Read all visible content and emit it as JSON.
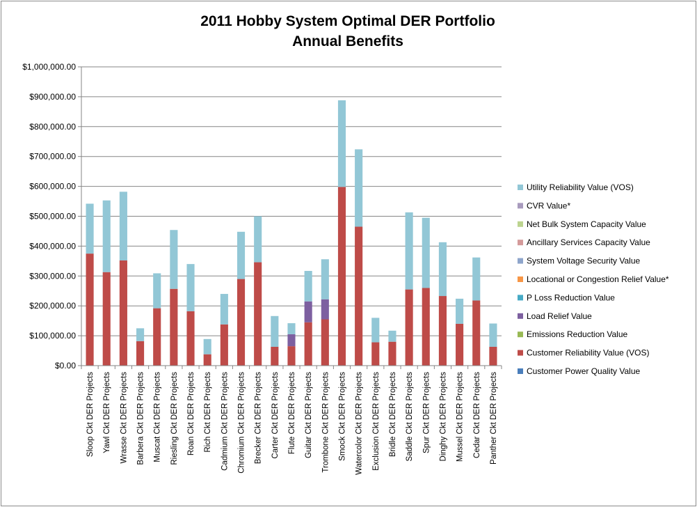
{
  "chart_data": {
    "type": "bar",
    "stacked": true,
    "title_lines": [
      "2011 Hobby System Optimal  DER Portfolio",
      "Annual Benefits"
    ],
    "ylim": [
      0,
      1000000
    ],
    "yticks": [
      0,
      100000,
      200000,
      300000,
      400000,
      500000,
      600000,
      700000,
      800000,
      900000,
      1000000
    ],
    "ytick_labels": [
      "$0.00",
      "$100,000.00",
      "$200,000.00",
      "$300,000.00",
      "$400,000.00",
      "$500,000.00",
      "$600,000.00",
      "$700,000.00",
      "$800,000.00",
      "$900,000.00",
      "$1,000,000.00"
    ],
    "grid": true,
    "legend_position": "right",
    "categories": [
      "Sloop Ckt DER Projects",
      "Yawl Ckt DER Projects",
      "Wrasse Ckt DER Projects",
      "Barbera Ckt DER Projects",
      "Muscat Ckt DER Projects",
      "Riesling Ckt DER Projects",
      "Roan Ckt DER Projects",
      "Rich Ckt DER Projects",
      "Cadmium Ckt DER Projects",
      "Chromium Ckt DER Projects",
      "Brecker Ckt DER Projects",
      "Carter Ckt DER Projects",
      "Flute Ckt DER Projects",
      "Guitar Ckt DER Projects",
      "Trombone Ckt DER Projects",
      "Smock Ckt DER Projects",
      "Watercolor Ckt DER Projects",
      "Exclusion Ckt DER Projects",
      "Bridle Ckt DER Projects",
      "Saddle Ckt DER Projects",
      "Spur Ckt DER Projects",
      "Dinghy Ckt DER Projects",
      "Mussel Ckt DER Projects",
      "Cedar Ckt DER Projects",
      "Panther Ckt DER Projects"
    ],
    "series": [
      {
        "name": "Customer Power Quality Value",
        "color": "#4a7ebb",
        "values": [
          0,
          0,
          0,
          0,
          0,
          0,
          0,
          0,
          0,
          0,
          0,
          0,
          0,
          0,
          0,
          0,
          0,
          0,
          0,
          0,
          0,
          0,
          0,
          0,
          0
        ]
      },
      {
        "name": "Customer Reliability Value (VOS)",
        "color": "#be4b48",
        "values": [
          375000,
          313000,
          352000,
          82000,
          192000,
          257000,
          182000,
          38000,
          138000,
          290000,
          346000,
          63000,
          65000,
          145000,
          155000,
          598000,
          465000,
          78000,
          80000,
          255000,
          260000,
          233000,
          140000,
          218000,
          63000
        ]
      },
      {
        "name": "Emissions Reduction Value",
        "color": "#98b954",
        "values": [
          0,
          0,
          0,
          0,
          0,
          0,
          0,
          0,
          0,
          0,
          0,
          0,
          0,
          0,
          0,
          0,
          0,
          0,
          0,
          0,
          0,
          0,
          0,
          0,
          0
        ]
      },
      {
        "name": "Load Relief Value",
        "color": "#7d60a0",
        "values": [
          0,
          0,
          0,
          0,
          0,
          0,
          0,
          0,
          0,
          0,
          0,
          0,
          40000,
          70000,
          67000,
          0,
          0,
          0,
          0,
          0,
          0,
          0,
          0,
          0,
          0
        ]
      },
      {
        "name": "P Loss Reduction Value",
        "color": "#46aac5",
        "values": [
          0,
          0,
          0,
          0,
          0,
          0,
          0,
          0,
          0,
          0,
          0,
          0,
          0,
          0,
          0,
          0,
          0,
          0,
          0,
          0,
          0,
          0,
          0,
          0,
          0
        ]
      },
      {
        "name": "Locational or Congestion Relief Value*",
        "color": "#f79646",
        "values": [
          0,
          0,
          0,
          0,
          0,
          0,
          0,
          0,
          0,
          0,
          0,
          0,
          0,
          0,
          0,
          0,
          0,
          0,
          0,
          0,
          0,
          0,
          0,
          0,
          0
        ]
      },
      {
        "name": "System Voltage Security Value",
        "color": "#8ea5cb",
        "values": [
          0,
          0,
          0,
          0,
          0,
          0,
          0,
          0,
          0,
          0,
          0,
          0,
          0,
          0,
          0,
          0,
          0,
          0,
          0,
          0,
          0,
          0,
          0,
          0,
          0
        ]
      },
      {
        "name": "Ancillary Services Capacity Value",
        "color": "#d49a9a",
        "values": [
          0,
          0,
          0,
          0,
          0,
          0,
          0,
          0,
          0,
          0,
          0,
          0,
          0,
          0,
          0,
          0,
          0,
          0,
          0,
          0,
          0,
          0,
          0,
          0,
          0
        ]
      },
      {
        "name": "Net Bulk System Capacity Value",
        "color": "#bcd48f",
        "values": [
          0,
          0,
          0,
          0,
          0,
          0,
          0,
          0,
          0,
          0,
          0,
          0,
          0,
          0,
          0,
          0,
          0,
          0,
          0,
          0,
          0,
          0,
          0,
          0,
          0
        ]
      },
      {
        "name": "CVR Value*",
        "color": "#a89bbd",
        "values": [
          0,
          0,
          0,
          0,
          0,
          0,
          0,
          0,
          0,
          0,
          0,
          0,
          0,
          0,
          0,
          0,
          0,
          0,
          0,
          0,
          0,
          0,
          0,
          0,
          0
        ]
      },
      {
        "name": "Utility Reliability Value (VOS)",
        "color": "#92c7d6",
        "values": [
          167000,
          240000,
          230000,
          43000,
          117000,
          197000,
          158000,
          51000,
          102000,
          158000,
          154000,
          103000,
          37000,
          102000,
          134000,
          290000,
          259000,
          82000,
          37000,
          258000,
          235000,
          180000,
          84000,
          144000,
          78000
        ]
      }
    ]
  }
}
